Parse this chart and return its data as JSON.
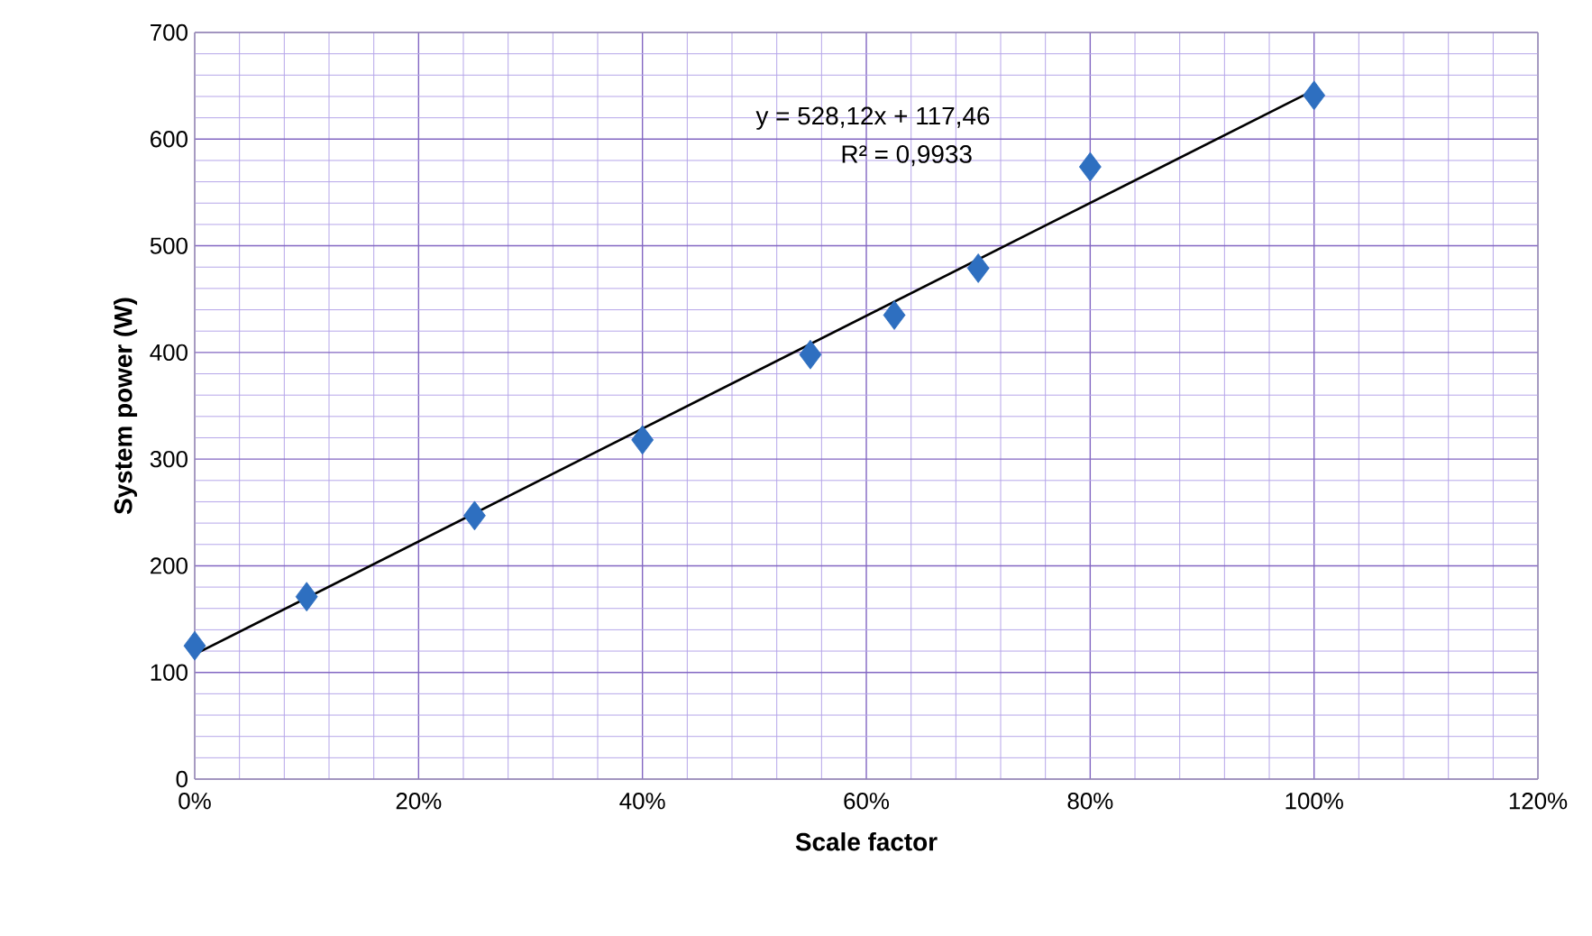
{
  "chart_data": {
    "type": "scatter",
    "xlabel": "Scale factor",
    "ylabel": "System power (W)",
    "xlim": [
      0,
      1.2
    ],
    "ylim": [
      0,
      700
    ],
    "xticks": [
      {
        "value": 0,
        "label": "0%"
      },
      {
        "value": 0.04,
        "label": null
      },
      {
        "value": 0.08,
        "label": null
      },
      {
        "value": 0.12,
        "label": null
      },
      {
        "value": 0.16,
        "label": null
      },
      {
        "value": 0.2,
        "label": "20%"
      },
      {
        "value": 0.24,
        "label": null
      },
      {
        "value": 0.28,
        "label": null
      },
      {
        "value": 0.32,
        "label": null
      },
      {
        "value": 0.36,
        "label": null
      },
      {
        "value": 0.4,
        "label": "40%"
      },
      {
        "value": 0.44,
        "label": null
      },
      {
        "value": 0.48,
        "label": null
      },
      {
        "value": 0.52,
        "label": null
      },
      {
        "value": 0.56,
        "label": null
      },
      {
        "value": 0.6,
        "label": "60%"
      },
      {
        "value": 0.64,
        "label": null
      },
      {
        "value": 0.68,
        "label": null
      },
      {
        "value": 0.72,
        "label": null
      },
      {
        "value": 0.76,
        "label": null
      },
      {
        "value": 0.8,
        "label": "80%"
      },
      {
        "value": 0.84,
        "label": null
      },
      {
        "value": 0.88,
        "label": null
      },
      {
        "value": 0.92,
        "label": null
      },
      {
        "value": 0.96,
        "label": null
      },
      {
        "value": 1.0,
        "label": "100%"
      },
      {
        "value": 1.04,
        "label": null
      },
      {
        "value": 1.08,
        "label": null
      },
      {
        "value": 1.12,
        "label": null
      },
      {
        "value": 1.16,
        "label": null
      },
      {
        "value": 1.2,
        "label": "120%"
      }
    ],
    "yticks": [
      0,
      {
        "value": 20,
        "label": null
      },
      {
        "value": 40,
        "label": null
      },
      {
        "value": 60,
        "label": null
      },
      {
        "value": 80,
        "label": null
      },
      100,
      {
        "value": 120,
        "label": null
      },
      {
        "value": 140,
        "label": null
      },
      {
        "value": 160,
        "label": null
      },
      {
        "value": 180,
        "label": null
      },
      200,
      {
        "value": 220,
        "label": null
      },
      {
        "value": 240,
        "label": null
      },
      {
        "value": 260,
        "label": null
      },
      {
        "value": 280,
        "label": null
      },
      300,
      {
        "value": 320,
        "label": null
      },
      {
        "value": 340,
        "label": null
      },
      {
        "value": 360,
        "label": null
      },
      {
        "value": 380,
        "label": null
      },
      400,
      {
        "value": 420,
        "label": null
      },
      {
        "value": 440,
        "label": null
      },
      {
        "value": 460,
        "label": null
      },
      {
        "value": 480,
        "label": null
      },
      500,
      {
        "value": 520,
        "label": null
      },
      {
        "value": 540,
        "label": null
      },
      {
        "value": 560,
        "label": null
      },
      {
        "value": 580,
        "label": null
      },
      600,
      {
        "value": 620,
        "label": null
      },
      {
        "value": 640,
        "label": null
      },
      {
        "value": 660,
        "label": null
      },
      {
        "value": 680,
        "label": null
      },
      700
    ],
    "grid": true,
    "marker": "diamond",
    "annotations": [
      "y = 528,12x + 117,46",
      "R² = 0,9933"
    ],
    "series": [
      {
        "color": "#2e6fc0",
        "x": [
          0,
          0.1,
          0.25,
          0.4,
          0.55,
          0.625,
          0.7,
          0.8,
          1.0
        ],
        "values": [
          125,
          171,
          247,
          318,
          398,
          435,
          479,
          574,
          641
        ]
      },
      {
        "type": "line",
        "color": "#000000",
        "marker": "none",
        "line_style": "solid",
        "x": [
          0,
          1.0
        ],
        "values": [
          117,
          646
        ]
      }
    ]
  }
}
